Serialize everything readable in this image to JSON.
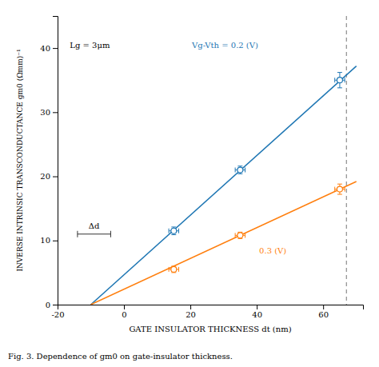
{
  "chart_data": {
    "type": "scatter",
    "xlabel": "GATE INSULATOR THICKNESS  dt (nm)",
    "ylabel": "INVERSE INTRINSIC TRANSCONDUCTANCE  gm0 (Ωmm)⁻¹",
    "caption": "Fig. 3.   Dependence of gm0 on gate-insulator thickness.",
    "xlim": [
      -20,
      72
    ],
    "ylim": [
      0,
      45
    ],
    "xticks": [
      -20,
      0,
      20,
      40,
      60
    ],
    "yticks": [
      0,
      10,
      20,
      30,
      40
    ],
    "series": [
      {
        "name": "Vg-Vth = 0.2 (V)",
        "x": [
          15,
          35,
          65
        ],
        "values": [
          11.5,
          21.0,
          35.0
        ],
        "yerr": [
          0.6,
          0.6,
          1.2
        ],
        "xerr": [
          1.5,
          1.5,
          1.5
        ],
        "fit": {
          "x": [
            -10,
            70
          ],
          "values": [
            0,
            37.2
          ]
        }
      },
      {
        "name": "0.3 (V)",
        "x": [
          15,
          35,
          65
        ],
        "values": [
          5.5,
          10.8,
          18.0
        ],
        "yerr": [
          0.5,
          0.5,
          0.8
        ],
        "xerr": [
          1.5,
          1.5,
          1.5
        ],
        "fit": {
          "x": [
            -10,
            70
          ],
          "values": [
            0,
            19.2
          ]
        }
      }
    ],
    "reference_lines": [
      {
        "x": 67,
        "line_style": "dashed"
      }
    ],
    "annotations": [
      {
        "text": "Lg = 3μm"
      },
      {
        "text": "Δd",
        "x": [
          -14,
          -4
        ],
        "y": 11
      }
    ]
  }
}
